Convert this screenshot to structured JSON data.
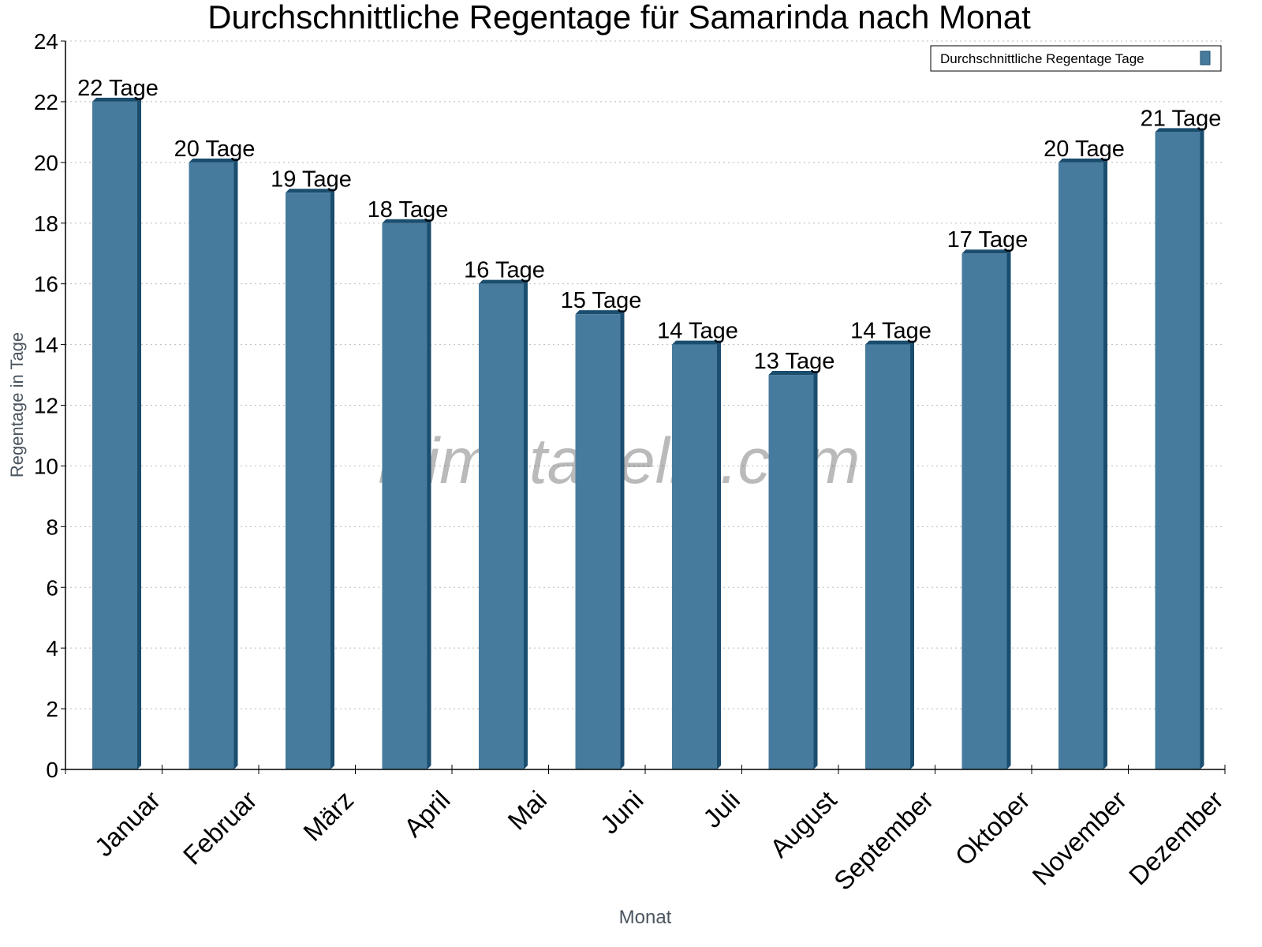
{
  "chart_data": {
    "type": "bar",
    "title": "Durchschnittliche Regentage für Samarinda nach Monat",
    "xlabel": "Monat",
    "ylabel": "Regentage in Tage",
    "ylim": [
      0,
      24
    ],
    "yticks": [
      0,
      2,
      4,
      6,
      8,
      10,
      12,
      14,
      16,
      18,
      20,
      22,
      24
    ],
    "grid": true,
    "legend_position": "top-right",
    "categories": [
      "Januar",
      "Februar",
      "März",
      "April",
      "Mai",
      "Juni",
      "Juli",
      "August",
      "September",
      "Oktober",
      "November",
      "Dezember"
    ],
    "series": [
      {
        "name": "Durchschnittliche Regentage Tage",
        "values": [
          22,
          20,
          19,
          18,
          16,
          15,
          14,
          13,
          14,
          17,
          20,
          21
        ],
        "labels": [
          "22 Tage",
          "20 Tage",
          "19 Tage",
          "18 Tage",
          "16 Tage",
          "15 Tage",
          "14 Tage",
          "13 Tage",
          "14 Tage",
          "17 Tage",
          "20 Tage",
          "21 Tage"
        ],
        "color": "#467b9d",
        "side_color": "#1a4d6e"
      }
    ],
    "watermark": "klimatabelle.com"
  }
}
